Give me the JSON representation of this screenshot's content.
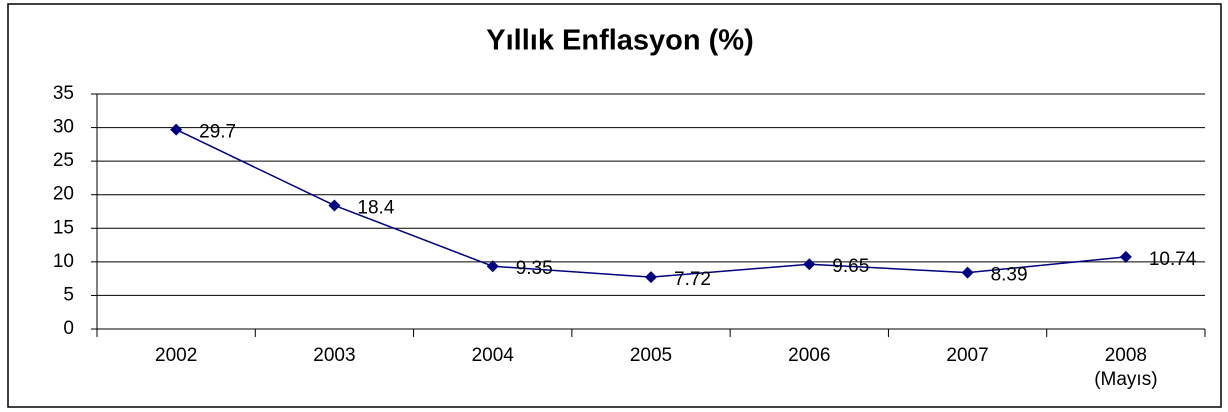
{
  "chart_data": {
    "type": "line",
    "title": "Yıllık Enflasyon (%)",
    "categories": [
      "2002",
      "2003",
      "2004",
      "2005",
      "2006",
      "2007",
      "2008\n(Mayıs)"
    ],
    "series": [
      {
        "name": "Yıllık Enflasyon",
        "color": "#000080",
        "values": [
          29.7,
          18.4,
          9.35,
          7.72,
          9.65,
          8.39,
          10.74
        ]
      }
    ],
    "ylim": [
      0,
      35
    ],
    "yticks": [
      0,
      5,
      10,
      15,
      20,
      25,
      30,
      35
    ],
    "grid": true
  }
}
